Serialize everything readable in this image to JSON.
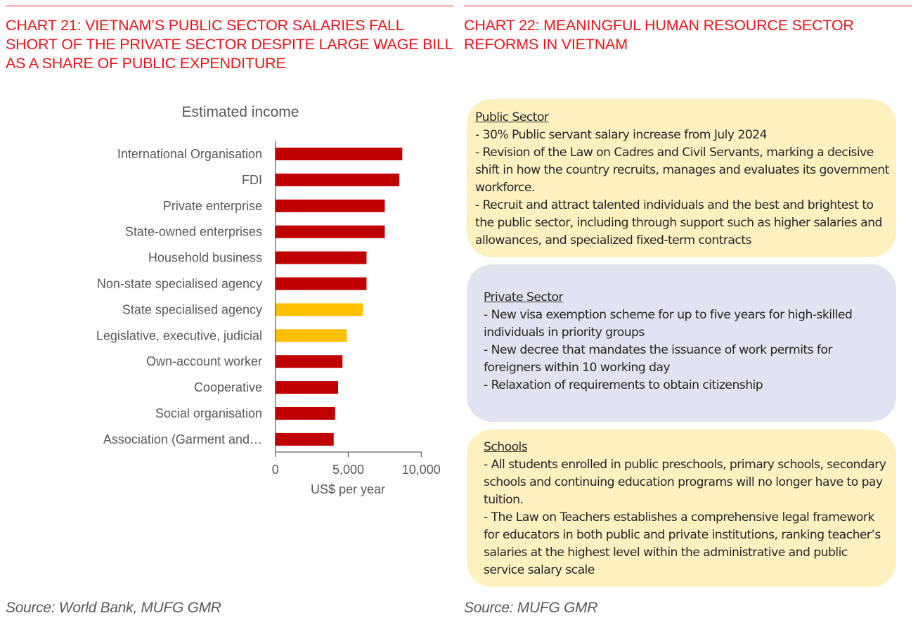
{
  "left": {
    "heading": "CHART 21: VIETNAM’S PUBLIC SECTOR SALARIES FALL SHORT OF THE PRIVATE SECTOR DESPITE LARGE WAGE BILL AS A SHARE OF PUBLIC EXPENDITURE",
    "source": "Source: World Bank, MUFG GMR"
  },
  "right": {
    "heading": "CHART 22: MEANINGFUL HUMAN RESOURCE SECTOR REFORMS IN VIETNAM",
    "source": "Source: MUFG GMR",
    "panels": [
      {
        "title": "Public Sector",
        "color": "#fff0c0",
        "bullets": [
          "- 30% Public servant salary increase from July 2024",
          "- Revision of the Law on Cadres and Civil Servants, marking a decisive shift in how the country recruits, manages and evaluates its government workforce.",
          "- Recruit and attract talented individuals and the best and brightest to the public sector, including through support such as higher salaries and allowances, and specialized fixed-term contracts"
        ]
      },
      {
        "title": "Private Sector",
        "color": "#e1e3f1",
        "bullets": [
          "- New visa exemption scheme for up to five years for high-skilled individuals in priority groups",
          "- New decree that mandates the issuance of work permits for foreigners within 10 working day",
          "- Relaxation of requirements to obtain citizenship"
        ]
      },
      {
        "title": "Schools",
        "color": "#fff0c0",
        "bullets": [
          "- All students enrolled in public preschools, primary schools, secondary schools and continuing education programs will no longer have to pay tuition.",
          "- The Law on Teachers establishes a comprehensive legal framework for educators in both public and private institutions, ranking teacher’s salaries at the highest level within the administrative and public service salary scale"
        ]
      }
    ]
  },
  "colors": {
    "heading": "#e8141b",
    "private_bar": "#c00000",
    "public_bar": "#ffc000",
    "text_gray": "#595959"
  },
  "chart_data": {
    "type": "bar",
    "orientation": "horizontal",
    "title": "Estimated income",
    "xlabel": "US$ per year",
    "ylabel": "",
    "xlim": [
      0,
      10000
    ],
    "xticks": [
      0,
      5000,
      10000
    ],
    "xtick_labels": [
      "0",
      "5,000",
      "10,000"
    ],
    "grid": false,
    "legend": "none",
    "categories": [
      "International Organisation",
      "FDI",
      "Private enterprise",
      "State-owned enterprises",
      "Household business",
      "Non-state specialised agency",
      "State specialised agency",
      "Legislative, executive, judicial",
      "Own-account worker",
      "Cooperative",
      "Social organisation",
      "Association (Garment and…"
    ],
    "values": [
      8700,
      8500,
      7500,
      7500,
      6250,
      6250,
      6000,
      4900,
      4600,
      4300,
      4100,
      4000
    ],
    "highlight": [
      false,
      false,
      false,
      false,
      false,
      false,
      true,
      true,
      false,
      false,
      false,
      false
    ]
  }
}
